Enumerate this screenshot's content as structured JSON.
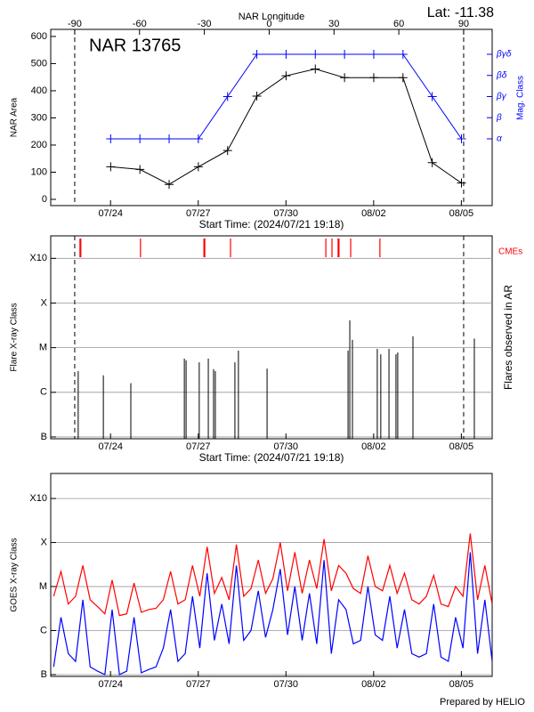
{
  "footer": "Prepared by HELIO",
  "chart_data": [
    {
      "type": "line",
      "title": "NAR 13765",
      "annotation": "Lat: -11.38",
      "x2label": "NAR Longitude",
      "xlabel": "Start Time: (2024/07/21 19:18)",
      "ylabel": "NAR Area",
      "y2label": "Mag. Class",
      "x": [
        2.2,
        3.2,
        4.2,
        5.2,
        6.2,
        7.2,
        8.2,
        9.2,
        10.2,
        11.2,
        12.2,
        13.2,
        14.2
      ],
      "xlim": [
        0.15,
        15.25
      ],
      "xticks": [
        {
          "value": 2.196,
          "label": "07/24"
        },
        {
          "value": 5.196,
          "label": "07/27"
        },
        {
          "value": 8.196,
          "label": "07/30"
        },
        {
          "value": 11.196,
          "label": "08/02"
        },
        {
          "value": 14.196,
          "label": "08/05"
        }
      ],
      "x2lim": [
        -101.1,
        103.2
      ],
      "x2ticks": [
        -90,
        -60,
        -30,
        0,
        30,
        60,
        90
      ],
      "ylim": [
        -23,
        626
      ],
      "yticks": [
        0,
        100,
        200,
        300,
        400,
        500,
        600
      ],
      "y2lim": [
        -2.16,
        6.18
      ],
      "y2ticks": [
        {
          "value": 1,
          "label": "α"
        },
        {
          "value": 2,
          "label": "β"
        },
        {
          "value": 3,
          "label": "βγ"
        },
        {
          "value": 4,
          "label": "βδ"
        },
        {
          "value": 5,
          "label": "βγδ"
        }
      ],
      "series": [
        {
          "color": "#000000",
          "values": [
            120,
            110,
            55,
            120,
            180,
            380,
            455,
            480,
            448,
            448,
            448,
            135,
            60
          ]
        },
        {
          "color": "#0000ff",
          "axis": "y2",
          "values": [
            1,
            1,
            1,
            1,
            3,
            5,
            5,
            5,
            5,
            5,
            5,
            3,
            1
          ]
        }
      ]
    },
    {
      "type": "event",
      "xlabel": "Start Time: (2024/07/21 19:18)",
      "ylabel": "Flare X-ray Class",
      "y2label": "Flares observed in AR",
      "log_y": true,
      "grid": true,
      "color": "#000000",
      "xlim": [
        0.15,
        15.25
      ],
      "xticks": [
        {
          "value": 2.196,
          "label": "07/24"
        },
        {
          "value": 5.196,
          "label": "07/27"
        },
        {
          "value": 8.196,
          "label": "07/30"
        },
        {
          "value": 11.196,
          "label": "08/02"
        },
        {
          "value": 14.196,
          "label": "08/05"
        }
      ],
      "ylim": [
        9.1e-08,
        0.0032
      ],
      "yticks": [
        {
          "value": 1e-07,
          "label": "B"
        },
        {
          "value": 1e-06,
          "label": "C"
        },
        {
          "value": 1e-05,
          "label": "M"
        },
        {
          "value": 0.0001,
          "label": "X"
        },
        {
          "value": 0.001,
          "label": "X10"
        }
      ],
      "x": [
        1.09,
        1.95,
        2.89,
        4.72,
        4.78,
        5.23,
        5.54,
        5.72,
        5.78,
        6.45,
        6.57,
        7.55,
        10.32,
        10.38,
        10.47,
        11.32,
        11.44,
        11.72,
        11.96,
        12.02,
        12.54,
        14.64
      ],
      "values": [
        3e-06,
        2.4e-06,
        1.6e-06,
        5.7e-06,
        5.2e-06,
        4.7e-06,
        5.7e-06,
        3.3e-06,
        3e-06,
        4.7e-06,
        8.6e-06,
        3.4e-06,
        8.6e-06,
        4.1e-05,
        1.5e-05,
        9.4e-06,
        7.1e-06,
        9.4e-06,
        7.1e-06,
        7.8e-06,
        1.8e-05,
        1.6e-05
      ],
      "cme": {
        "name": "CMEs",
        "color": "#ff0000",
        "x": [
          1.15,
          1.18,
          3.22,
          5.39,
          5.42,
          6.3,
          9.56,
          9.77,
          9.98,
          10.01,
          10.41,
          11.41
        ]
      }
    },
    {
      "type": "line",
      "ylabel": "GOES X-ray Class",
      "log_y": true,
      "grid": true,
      "xlim": [
        0.15,
        15.25
      ],
      "xticks": [
        {
          "value": 2.196,
          "label": "07/24"
        },
        {
          "value": 5.196,
          "label": "07/27"
        },
        {
          "value": 8.196,
          "label": "07/30"
        },
        {
          "value": 11.196,
          "label": "08/02"
        },
        {
          "value": 14.196,
          "label": "08/05"
        }
      ],
      "ylim": [
        9.1e-08,
        0.0037
      ],
      "yticks": [
        {
          "value": 1e-07,
          "label": "B"
        },
        {
          "value": 1e-06,
          "label": "C"
        },
        {
          "value": 1e-05,
          "label": "M"
        },
        {
          "value": 0.0001,
          "label": "X"
        },
        {
          "value": 0.001,
          "label": "X10"
        }
      ],
      "x": [
        0.25,
        0.5,
        0.75,
        1,
        1.25,
        1.5,
        1.75,
        2,
        2.25,
        2.5,
        2.75,
        3,
        3.25,
        3.5,
        3.75,
        4,
        4.25,
        4.5,
        4.75,
        5,
        5.25,
        5.5,
        5.75,
        6,
        6.25,
        6.5,
        6.75,
        7,
        7.25,
        7.5,
        7.75,
        8,
        8.25,
        8.5,
        8.75,
        9,
        9.25,
        9.5,
        9.75,
        10,
        10.25,
        10.5,
        10.75,
        11,
        11.25,
        11.5,
        11.75,
        12,
        12.25,
        12.5,
        12.75,
        13,
        13.25,
        13.5,
        13.75,
        14,
        14.25,
        14.5,
        14.75,
        15,
        15.25
      ],
      "series": [
        {
          "color": "#ff0000",
          "values": [
            6e-06,
            2.2e-05,
            4e-06,
            6e-06,
            3e-05,
            5e-06,
            3.5e-06,
            2.4e-06,
            1.4e-05,
            2.2e-06,
            2.4e-06,
            1.2e-05,
            2.6e-06,
            3e-06,
            3.2e-06,
            5e-06,
            2.2e-05,
            4e-06,
            5e-06,
            3e-05,
            6e-06,
            8e-05,
            7e-06,
            1.6e-05,
            5e-06,
            9e-05,
            6e-06,
            9e-06,
            4e-05,
            7e-06,
            1.5e-05,
            0.0001,
            8e-06,
            6e-05,
            7e-06,
            4e-05,
            9e-06,
            0.00012,
            8e-06,
            3e-05,
            2e-05,
            9e-06,
            7e-06,
            5e-05,
            1e-05,
            8e-06,
            3e-05,
            7e-06,
            2e-05,
            5e-06,
            4e-06,
            6e-06,
            1.8e-05,
            4e-06,
            3.5e-06,
            1e-05,
            6e-06,
            0.00016,
            5e-06,
            3e-05,
            4e-06
          ]
        },
        {
          "color": "#0000ff",
          "values": [
            1.5e-07,
            2e-06,
            3e-07,
            2e-07,
            5e-06,
            1.5e-07,
            1.2e-07,
            1e-07,
            3e-06,
            1e-07,
            1.2e-07,
            2e-06,
            1.1e-07,
            1.3e-07,
            1.5e-07,
            4e-07,
            3e-06,
            2e-07,
            3e-07,
            6e-06,
            4e-07,
            2e-05,
            6e-07,
            4e-06,
            5e-07,
            3e-05,
            6e-07,
            1e-06,
            8e-06,
            7e-07,
            3e-06,
            2.5e-05,
            8e-07,
            1e-05,
            6e-07,
            7e-06,
            5e-07,
            4e-05,
            3e-07,
            5e-06,
            3e-06,
            5e-07,
            6e-07,
            1e-05,
            8e-07,
            6e-07,
            6e-06,
            4e-07,
            3e-06,
            3e-07,
            2.5e-07,
            3e-07,
            4e-06,
            2.5e-07,
            2e-07,
            2e-06,
            4e-07,
            6e-05,
            3e-07,
            5e-06,
            2e-07
          ]
        }
      ]
    }
  ]
}
